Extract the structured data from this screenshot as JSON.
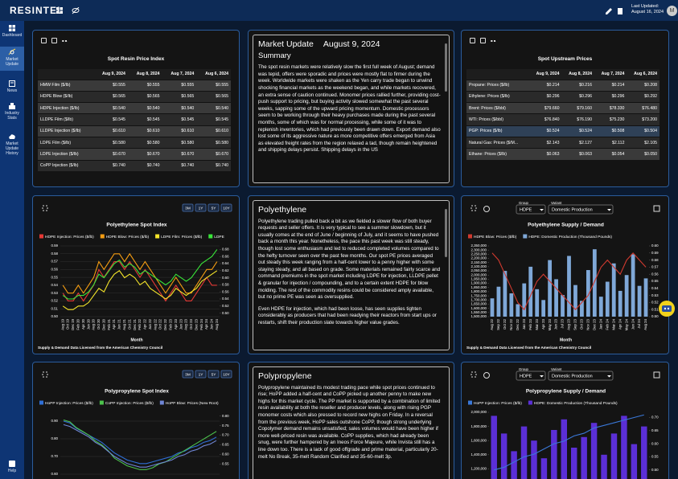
{
  "header": {
    "brand": "RESINTEL",
    "last_updated_label": "Last Updated:",
    "last_updated_date": "August 16, 2024",
    "user_initial": "M"
  },
  "sidebar": {
    "items": [
      "Dashboard",
      "Market Update",
      "News",
      "Industry Stats",
      "Market Update History"
    ],
    "help": "Help"
  },
  "spot_resin_table": {
    "title": "Spot Resin Price Index",
    "columns": [
      "Aug 9, 2024",
      "Aug 8, 2024",
      "Aug 7, 2024",
      "Aug 6, 2024"
    ],
    "rows": [
      [
        "HMW Film ($/lb)",
        "$0.555",
        "$0.555",
        "$0.555",
        "$0.555"
      ],
      [
        "HDPE Blow ($/lb)",
        "$0.565",
        "$0.565",
        "$0.565",
        "$0.565"
      ],
      [
        "HDPE Injection ($/lb)",
        "$0.540",
        "$0.540",
        "$0.540",
        "$0.540"
      ],
      [
        "LLDPE Film ($/lb)",
        "$0.545",
        "$0.545",
        "$0.545",
        "$0.545"
      ],
      [
        "LLDPE Injection ($/lb)",
        "$0.610",
        "$0.610",
        "$0.610",
        "$0.610"
      ],
      [
        "LDPE Film ($/lb)",
        "$0.580",
        "$0.580",
        "$0.580",
        "$0.580"
      ],
      [
        "LDPE Injection ($/lb)",
        "$0.670",
        "$0.670",
        "$0.670",
        "$0.670"
      ],
      [
        "CoPP Injection ($/lb)",
        "$0.740",
        "$0.740",
        "$0.740",
        "$0.740"
      ]
    ]
  },
  "market_update": {
    "title": "Market Update",
    "date": "August 9, 2024",
    "heading": "Summary",
    "paragraphs": [
      "The spot resin markets were relatively slow the first full week of August; demand was tepid, offers were sporadic and prices were mostly flat to firmer during the week. Worldwide markets were shaken as the Yen carry trade began to unwind shocking financial markets as the weekend began, and while markets recovered, an extra sense of caution continued. Monomer prices rallied further, providing cost-push support to pricing, but buying activity slowed somewhat the past several weeks, sapping some of the upward pricing momentum. Domestic processors seem to be working through their heavy purchases made during the past several months, some of which was for normal processing, while some of it was to replenish inventories, which had previously been drawn down. Export demand also lost some of its aggressive nature as more competitive offers emerged from Asia as elevated freight rates from the region relaxed a tad, though remain heightened and shipping delays persist. Shipping delays in the US"
    ]
  },
  "spot_upstream_table": {
    "title": "Spot Upstream Prices",
    "columns": [
      "Aug 9, 2024",
      "Aug 8, 2024",
      "Aug 7, 2024",
      "Aug 6, 2024"
    ],
    "selected_row": 4,
    "rows": [
      [
        "Propane: Prices ($/lb)",
        "$0.214",
        "$0.216",
        "$0.214",
        "$0.208"
      ],
      [
        "Ethylene: Prices ($/lb)",
        "$0.296",
        "$0.296",
        "$0.296",
        "$0.292"
      ],
      [
        "Brent: Prices ($/bbl)",
        "$79.660",
        "$79.160",
        "$78.330",
        "$76.480"
      ],
      [
        "WTI: Prices ($/bbl)",
        "$76.840",
        "$76.190",
        "$75.230",
        "$73.200"
      ],
      [
        "PGP: Prices ($/lb)",
        "$0.524",
        "$0.524",
        "$0.508",
        "$0.504"
      ],
      [
        "Natural Gas: Prices ($/M...",
        "$2.143",
        "$2.127",
        "$2.112",
        "$2.105"
      ],
      [
        "Ethane: Prices ($/lb)",
        "$0.063",
        "$0.063",
        "$0.054",
        "$0.050"
      ]
    ]
  },
  "polyethylene": {
    "title": "Polyethylene",
    "paragraphs": [
      "Polyethylene trading pulled back a bit as we fielded a slower flow of both buyer requests and seller offers. It is very typical to see a summer slowdown, but it usually comes at the end of June / beginning of July, and it seems to have pushed back a month this year. Nonetheless, the pace this past week was still steady, though lost some enthusiasm and led to reduced completed volumes compared to the hefty turnover seen over the past few months. Our spot PE prices averaged out steady this week ranging from a half-cent lower to a penny higher with some staying steady, and all based on grade. Some materials remained fairly scarce and command premiums in the spot market including LDPE for injection, LLDPE pellet & granular for injection / compounding, and to a certain extent HDPE for blow molding. The rest of the commodity resins could be considered amply available, but no prime PE was seen as oversupplied.",
      "Even HDPE for injection, which had been loose, has seen supplies tighten considerably as producers that had been readying their reactors from start ups or restarts, shift their production slate towards higher value grades."
    ]
  },
  "polypropylene": {
    "title": "Polypropylene",
    "paragraphs": [
      "Polypropylene maintained its modest trading pace while spot prices continued to rise; HoPP added a half-cent and CoPP picked up another penny to make new highs for this market cycle. The PP market is supported by a combination of limited resin availability at both the reseller and producer levels, along with rising PGP monomer costs which also pressed to record new highs on Friday. In a reversal from the previous week, HoPP sales outshone CoPP, though strong underlying Copolymer demand remains unsatisfied; sales volumes would have been higher if more well-priced resin was available. CoPP supplies, which had already been snug, were further hampered by an Ineos Force Majeure, while Invista still has a line down too. There is a lack of good offgrade and prime material, particularly 20-melt No Break, 35-melt Random Clarified and 35-60-melt 3p."
    ]
  },
  "chart_data": [
    {
      "type": "line",
      "title": "Polyethylene Spot Index",
      "range_options": [
        "3M",
        "1Y",
        "5Y",
        "10Y"
      ],
      "xlabel": "Month",
      "note": "Supply & Demand Data Licensed from the American Chemistry Council",
      "grid": true,
      "categories": [
        "Aug 19",
        "Oct 19",
        "Dec 19",
        "Feb 20",
        "Apr 20",
        "Jun 20",
        "Aug 20",
        "Oct 20",
        "Dec 20",
        "Feb 21",
        "Apr 21",
        "Jun 21",
        "Aug 21",
        "Oct 21",
        "Dec 21",
        "Feb 22",
        "Apr 22",
        "Jun 22",
        "Aug 22",
        "Oct 22",
        "Dec 22",
        "Feb 23",
        "Apr 23",
        "Jun 23",
        "Aug 23",
        "Oct 23",
        "Dec 23",
        "Feb 24",
        "Apr 24",
        "Jun 24",
        "Aug 24"
      ],
      "ylim": [
        0.5,
        0.59
      ],
      "yticks": [
        {
          "value": 0.5,
          "label": "0.50"
        },
        0.51,
        0.52,
        0.53,
        0.54,
        0.55,
        0.56,
        0.57,
        0.58,
        0.59
      ],
      "y2lim": [
        0.49,
        0.69
      ],
      "y2ticks": [
        {
          "value": 0.5,
          "label": "0.50"
        },
        0.52,
        0.54,
        0.56,
        0.58,
        {
          "value": 0.6,
          "label": "0.60"
        },
        0.62,
        0.64,
        0.66,
        0.68
      ],
      "series": [
        {
          "name": "HDPE Injection: Prices ($/lb)",
          "color": "#e53935",
          "values": [
            0.53,
            0.52,
            0.52,
            0.53,
            0.52,
            0.53,
            0.54,
            0.56,
            0.55,
            0.56,
            0.57,
            0.57,
            0.56,
            0.57,
            0.56,
            0.55,
            0.56,
            0.55,
            0.54,
            0.53,
            0.52,
            0.53,
            0.54,
            0.53,
            0.52,
            0.52,
            0.53,
            0.54,
            0.55,
            0.54,
            0.54
          ]
        },
        {
          "name": "HDPE Blow: Prices ($/lb)",
          "color": "#f39c12",
          "values": [
            0.54,
            0.53,
            0.53,
            0.54,
            0.53,
            0.54,
            0.55,
            0.57,
            0.56,
            0.57,
            0.58,
            0.58,
            0.57,
            0.58,
            0.57,
            0.56,
            0.57,
            0.56,
            0.55,
            0.54,
            0.53,
            0.54,
            0.55,
            0.54,
            0.53,
            0.53,
            0.54,
            0.55,
            0.56,
            0.56,
            0.57
          ]
        },
        {
          "name": "LDPE Film: Prices ($/lb)",
          "color": "#f5e52a",
          "axis": "y2",
          "values": [
            0.52,
            0.51,
            0.51,
            0.52,
            0.52,
            0.53,
            0.55,
            0.57,
            0.56,
            0.59,
            0.61,
            0.62,
            0.6,
            0.61,
            0.6,
            0.58,
            0.59,
            0.57,
            0.56,
            0.55,
            0.54,
            0.55,
            0.57,
            0.56,
            0.55,
            0.56,
            0.57,
            0.59,
            0.6,
            0.61,
            0.62
          ]
        },
        {
          "name": "LDPE",
          "color": "#39e639",
          "axis": "y2",
          "values": [
            0.55,
            0.54,
            0.54,
            0.55,
            0.55,
            0.56,
            0.58,
            0.61,
            0.6,
            0.62,
            0.64,
            0.65,
            0.63,
            0.64,
            0.63,
            0.61,
            0.62,
            0.61,
            0.6,
            0.59,
            0.58,
            0.59,
            0.61,
            0.6,
            0.59,
            0.6,
            0.62,
            0.64,
            0.65,
            0.66,
            0.68
          ]
        }
      ]
    },
    {
      "type": "bar",
      "title": "Polyethylene Supply / Demand",
      "group_label": "Group",
      "group": "HDPE",
      "variant_label": "Variant",
      "variant": "Domestic Production",
      "xlabel": "Month",
      "note": "Supply & Demand Data Licensed from the American Chemistry Council",
      "grid": false,
      "categories": [
        "Aug 22",
        "Sep 22",
        "Oct 22",
        "Nov 22",
        "Dec 22",
        "Jan 23",
        "Feb 23",
        "Mar 23",
        "Apr 23",
        "May 23",
        "Jun 23",
        "Jul 23",
        "Aug 23",
        "Sep 23",
        "Oct 23",
        "Nov 23",
        "Dec 23",
        "Jan 24",
        "Feb 24",
        "Mar 24",
        "Apr 24",
        "May 24",
        "Jun 24",
        "Jul 24",
        "Aug 24"
      ],
      "ylim": [
        1500000,
        2350000
      ],
      "yticks": [
        {
          "value": 1500000,
          "label": "1,500,000"
        },
        {
          "value": 1550000,
          "label": "1,550,000"
        },
        {
          "value": 1600000,
          "label": "1,600,000"
        },
        {
          "value": 1650000,
          "label": "1,650,000"
        },
        {
          "value": 1700000,
          "label": "1,700,000"
        },
        {
          "value": 1750000,
          "label": "1,750,000"
        },
        {
          "value": 1800000,
          "label": "1,800,000"
        },
        {
          "value": 1850000,
          "label": "1,850,000"
        },
        {
          "value": 1900000,
          "label": "1,900,000"
        },
        {
          "value": 1950000,
          "label": "1,950,000"
        },
        {
          "value": 2000000,
          "label": "2,000,000"
        },
        {
          "value": 2050000,
          "label": "2,050,000"
        },
        {
          "value": 2100000,
          "label": "2,100,000"
        },
        {
          "value": 2150000,
          "label": "2,150,000"
        },
        {
          "value": 2200000,
          "label": "2,200,000"
        },
        {
          "value": 2250000,
          "label": "2,250,000"
        },
        {
          "value": 2300000,
          "label": "2,300,000"
        },
        {
          "value": 2350000,
          "label": "2,350,000"
        }
      ],
      "y2lim": [
        0.5,
        0.6
      ],
      "y2ticks": [
        {
          "value": 0.5,
          "label": "0.50"
        },
        0.51,
        0.52,
        0.53,
        0.54,
        0.55,
        0.56,
        0.57,
        0.58,
        0.59,
        {
          "value": 0.6,
          "label": "0.60"
        }
      ],
      "series": [
        {
          "name": "HDPE Blow: Prices ($/lb)",
          "color": "#d03a2f",
          "type": "line",
          "axis": "y2",
          "values": [
            0.59,
            0.58,
            0.56,
            0.54,
            0.52,
            0.51,
            0.53,
            0.55,
            0.56,
            0.55,
            0.54,
            0.53,
            0.52,
            0.51,
            0.52,
            0.53,
            0.55,
            0.57,
            0.58,
            0.57,
            0.56,
            0.58,
            0.59,
            0.58,
            0.57
          ]
        },
        {
          "name": "HDPE: Domestic Production (Thousand Pounds)",
          "color": "#7fa8d8",
          "type": "bar",
          "values": [
            1720000,
            1860000,
            2050000,
            1780000,
            1650000,
            1900000,
            2100000,
            1830000,
            1700000,
            2180000,
            1950000,
            1760000,
            2230000,
            1880000,
            1690000,
            2060000,
            2310000,
            1740000,
            1920000,
            2140000,
            1810000,
            2000000,
            2250000,
            1870000,
            1960000
          ]
        }
      ]
    },
    {
      "type": "line",
      "title": "Polypropylene Spot Index",
      "range_options": [
        "3M",
        "1Y",
        "5Y",
        "10Y"
      ],
      "grid": true,
      "ylim": [
        0.55,
        0.95
      ],
      "yticks": [
        {
          "value": 0.6,
          "label": "0.60"
        },
        {
          "value": 0.7,
          "label": "0.70"
        },
        {
          "value": 0.8,
          "label": "0.80"
        },
        {
          "value": 0.9,
          "label": "0.90"
        }
      ],
      "y2lim": [
        0.45,
        0.82
      ],
      "y2ticks": [
        0.55,
        {
          "value": 0.6,
          "label": "0.60"
        },
        0.65,
        {
          "value": 0.7,
          "label": "0.70"
        },
        0.75,
        {
          "value": 0.8,
          "label": "0.80"
        }
      ],
      "series": [
        {
          "name": "HoPP Injection: Prices ($/lb)",
          "color": "#2f6fd6",
          "values": [
            0.9,
            0.89,
            0.86,
            0.84,
            0.82,
            0.8,
            0.78,
            0.75,
            0.72,
            0.7,
            0.68,
            0.67,
            0.66,
            0.66,
            0.67,
            0.68,
            0.69,
            0.7,
            0.72,
            0.73,
            0.75,
            0.76,
            0.78,
            0.79,
            0.81
          ]
        },
        {
          "name": "CoPP Injection: Prices ($/lb)",
          "color": "#4cc24c",
          "axis": "y2",
          "values": [
            0.78,
            0.77,
            0.74,
            0.72,
            0.7,
            0.67,
            0.65,
            0.62,
            0.58,
            0.56,
            0.54,
            0.53,
            0.52,
            0.52,
            0.53,
            0.55,
            0.56,
            0.58,
            0.6,
            0.62,
            0.64,
            0.66,
            0.68,
            0.7,
            0.72
          ]
        },
        {
          "name": "HoPP Blow: Prices (New Root)",
          "color": "#6f86d6",
          "values": [
            0.88,
            0.87,
            0.85,
            0.83,
            0.81,
            0.78,
            0.76,
            0.73,
            0.7,
            0.68,
            0.66,
            0.65,
            0.64,
            0.64,
            0.65,
            0.66,
            0.67,
            0.68,
            0.7,
            0.71,
            0.73,
            0.74,
            0.76,
            0.77,
            0.79
          ]
        }
      ]
    },
    {
      "type": "bar",
      "title": "Polypropylene Supply / Demand",
      "group_label": "Group",
      "group": "HDPE",
      "variant_label": "Variant",
      "variant": "Domestic Production",
      "grid": false,
      "ylim": [
        1000000,
        2000000
      ],
      "yticks": [
        {
          "value": 1200000,
          "label": "1,200,000"
        },
        {
          "value": 1400000,
          "label": "1,400,000"
        },
        {
          "value": 1600000,
          "label": "1,600,000"
        },
        {
          "value": 1800000,
          "label": "1,800,000"
        },
        {
          "value": 2000000,
          "label": "2,000,000"
        }
      ],
      "y2lim": [
        0.45,
        0.72
      ],
      "y2ticks": [
        {
          "value": 0.5,
          "label": "0.50"
        },
        0.55,
        {
          "value": 0.6,
          "label": "0.60"
        },
        0.65,
        {
          "value": 0.7,
          "label": "0.70"
        }
      ],
      "series": [
        {
          "name": "HoPP Injection: Prices ($/lb)",
          "color": "#3a78d8",
          "type": "line",
          "axis": "y2",
          "values": [
            0.5,
            0.51,
            0.53,
            0.55,
            0.56,
            0.58,
            0.6,
            0.61,
            0.63,
            0.64,
            0.66,
            0.67,
            0.68,
            0.69,
            0.7,
            0.71
          ]
        },
        {
          "name": "HDPE: Domestic Production (Thousand Pounds)",
          "color": "#5b2fd6",
          "type": "bar",
          "values": [
            1950000,
            1700000,
            1450000,
            1800000,
            1600000,
            1350000,
            1750000,
            1900000,
            1500000,
            1650000,
            1850000,
            1400000,
            1700000,
            1950000,
            1550000,
            1800000
          ]
        }
      ]
    }
  ]
}
